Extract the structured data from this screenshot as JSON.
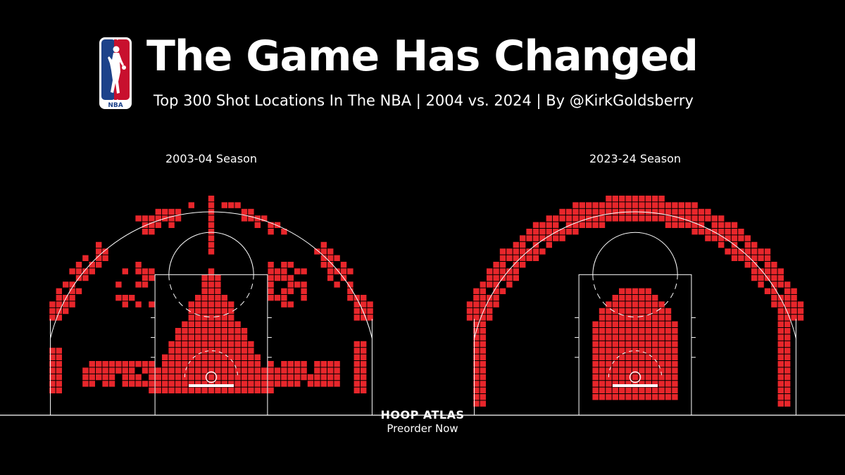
{
  "header": {
    "title": "The Game Has Changed",
    "subtitle": "Top 300 Shot Locations In The NBA | 2004 vs. 2024 | By @KirkGoldsberry",
    "logo_text": "NBA"
  },
  "footer": {
    "brand": "HOOP ATLAS",
    "cta": "Preorder Now"
  },
  "colors": {
    "background": "#000000",
    "cell": "#e8262b",
    "court_lines": "#ffffff",
    "logo_blue": "#1d428a",
    "logo_red": "#c8102e"
  },
  "chart_data": [
    {
      "type": "heatmap",
      "title": "2003-04 Season",
      "description": "Top 300 shot locations on a half court grid",
      "grid_unit_ft": 1,
      "x_range_ft": [
        -25,
        25
      ],
      "y_range_ft": [
        -5,
        42
      ],
      "regions": [
        {
          "name": "restricted-area-and-paint",
          "kind": "triangle",
          "apex": [
            0,
            16
          ],
          "base_y": -2,
          "base_half_width": 9
        },
        {
          "name": "left-baseline-midrange",
          "kind": "row-band",
          "x": [
            -19,
            -9
          ],
          "y": [
            -1,
            2
          ]
        },
        {
          "name": "right-baseline-midrange",
          "kind": "row-band",
          "x": [
            9,
            19
          ],
          "y": [
            -1,
            2
          ]
        },
        {
          "name": "left-corner-three",
          "kind": "column",
          "x": [
            -24,
            -23
          ],
          "y": [
            -2,
            4
          ]
        },
        {
          "name": "right-corner-three",
          "kind": "column",
          "x": [
            22,
            23
          ],
          "y": [
            -2,
            5
          ]
        },
        {
          "name": "top-key-strip",
          "kind": "column",
          "x": [
            0,
            0
          ],
          "y": [
            19,
            27
          ]
        },
        {
          "name": "left-elbow-midrange",
          "kind": "cluster",
          "x": [
            -14,
            -9
          ],
          "y": [
            11,
            17
          ]
        },
        {
          "name": "right-elbow-midrange",
          "kind": "cluster",
          "x": [
            9,
            14
          ],
          "y": [
            11,
            17
          ]
        },
        {
          "name": "above-break-three",
          "kind": "arc-dashed",
          "radius": [
            24,
            26
          ]
        },
        {
          "name": "top-of-arc-three",
          "kind": "cluster",
          "x": [
            -1,
            1
          ],
          "y": [
            31,
            32
          ]
        }
      ]
    },
    {
      "type": "heatmap",
      "title": "2023-24 Season",
      "description": "Top 300 shot locations on a half court grid",
      "grid_unit_ft": 1,
      "x_range_ft": [
        -25,
        25
      ],
      "y_range_ft": [
        -5,
        42
      ],
      "regions": [
        {
          "name": "paint-blob",
          "kind": "blob",
          "x": [
            -6,
            6
          ],
          "y": [
            -3,
            13
          ]
        },
        {
          "name": "left-corner-three",
          "kind": "column",
          "x": [
            -24,
            -23
          ],
          "y": [
            -4,
            8
          ]
        },
        {
          "name": "right-corner-three",
          "kind": "column",
          "x": [
            22,
            23
          ],
          "y": [
            -4,
            8
          ]
        },
        {
          "name": "above-break-three",
          "kind": "arc-solid",
          "radius": [
            24,
            27
          ]
        }
      ]
    }
  ]
}
